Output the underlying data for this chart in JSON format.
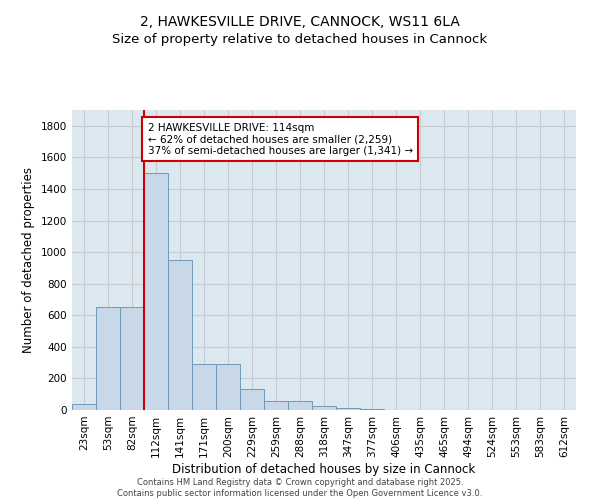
{
  "title": "2, HAWKESVILLE DRIVE, CANNOCK, WS11 6LA",
  "subtitle": "Size of property relative to detached houses in Cannock",
  "xlabel": "Distribution of detached houses by size in Cannock",
  "ylabel": "Number of detached properties",
  "categories": [
    "23sqm",
    "53sqm",
    "82sqm",
    "112sqm",
    "141sqm",
    "171sqm",
    "200sqm",
    "229sqm",
    "259sqm",
    "288sqm",
    "318sqm",
    "347sqm",
    "377sqm",
    "406sqm",
    "435sqm",
    "465sqm",
    "494sqm",
    "524sqm",
    "553sqm",
    "583sqm",
    "612sqm"
  ],
  "values": [
    40,
    650,
    650,
    1500,
    950,
    290,
    290,
    130,
    60,
    60,
    25,
    10,
    5,
    2,
    1,
    0,
    0,
    0,
    0,
    0,
    0
  ],
  "bar_color": "#c8d8e8",
  "bar_edge_color": "#7098b8",
  "bar_linewidth": 0.7,
  "annotation_line1": "2 HAWKESVILLE DRIVE: 114sqm",
  "annotation_line2": "← 62% of detached houses are smaller (2,259)",
  "annotation_line3": "37% of semi-detached houses are larger (1,341) →",
  "annotation_box_color": "#ffffff",
  "annotation_box_edge": "#cc0000",
  "ylim": [
    0,
    1900
  ],
  "yticks": [
    0,
    200,
    400,
    600,
    800,
    1000,
    1200,
    1400,
    1600,
    1800
  ],
  "grid_color": "#c8c8d0",
  "bg_color": "#dce8f0",
  "footer": "Contains HM Land Registry data © Crown copyright and database right 2025.\nContains public sector information licensed under the Open Government Licence v3.0.",
  "title_fontsize": 10,
  "subtitle_fontsize": 9.5,
  "axis_label_fontsize": 8.5,
  "tick_fontsize": 7.5,
  "annotation_fontsize": 7.5,
  "footer_fontsize": 6.0
}
